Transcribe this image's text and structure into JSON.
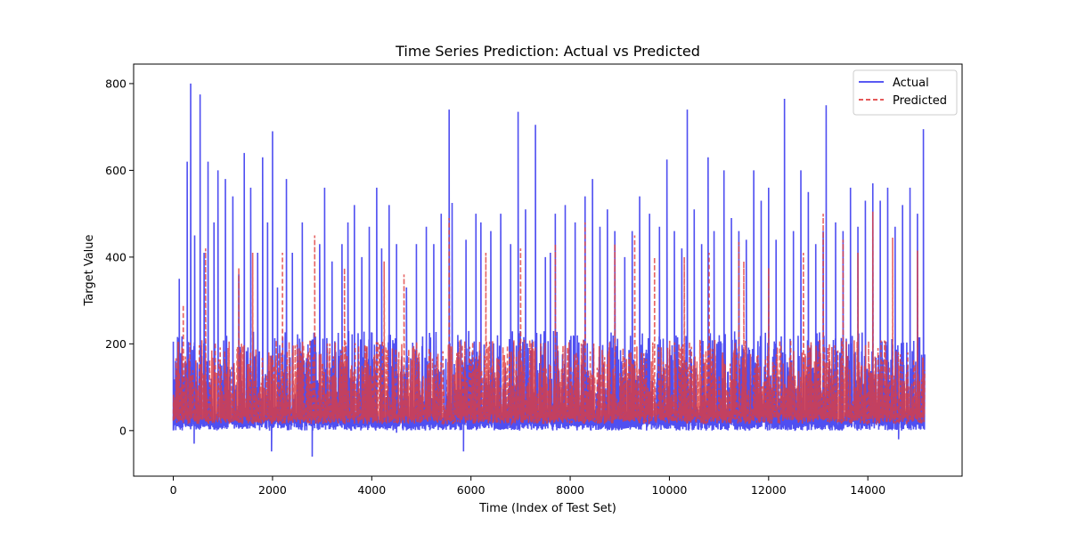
{
  "chart_data": {
    "type": "line",
    "title": "Time Series Prediction: Actual vs Predicted",
    "xlabel": "Time (Index of Test Set)",
    "ylabel": "Target Value",
    "xlim": [
      -800,
      15900
    ],
    "ylim": [
      -105,
      845
    ],
    "x_ticks": [
      0,
      2000,
      4000,
      6000,
      8000,
      10000,
      12000,
      14000
    ],
    "y_ticks": [
      0,
      200,
      400,
      600,
      800
    ],
    "x_tick_labels": [
      "0",
      "2000",
      "4000",
      "6000",
      "8000",
      "10000",
      "12000",
      "14000"
    ],
    "y_tick_labels": [
      "0",
      "200",
      "400",
      "600",
      "800"
    ],
    "grid": false,
    "legend_position": "top-right",
    "n_points": 15150,
    "series": [
      {
        "name": "Actual",
        "color": "#3c3cf0",
        "style": "solid",
        "baseline_range": [
          0,
          230
        ],
        "spikes": [
          [
            0,
            205
          ],
          [
            120,
            350
          ],
          [
            280,
            620
          ],
          [
            350,
            800
          ],
          [
            430,
            450
          ],
          [
            540,
            775
          ],
          [
            620,
            410
          ],
          [
            700,
            620
          ],
          [
            820,
            480
          ],
          [
            900,
            600
          ],
          [
            1050,
            580
          ],
          [
            1200,
            540
          ],
          [
            1320,
            360
          ],
          [
            1430,
            640
          ],
          [
            1560,
            560
          ],
          [
            1700,
            410
          ],
          [
            1800,
            630
          ],
          [
            1900,
            480
          ],
          [
            2000,
            690
          ],
          [
            2100,
            330
          ],
          [
            2280,
            580
          ],
          [
            2400,
            410
          ],
          [
            2600,
            480
          ],
          [
            2800,
            210
          ],
          [
            2950,
            430
          ],
          [
            3050,
            560
          ],
          [
            3200,
            390
          ],
          [
            3400,
            430
          ],
          [
            3520,
            480
          ],
          [
            3650,
            520
          ],
          [
            3800,
            400
          ],
          [
            3950,
            470
          ],
          [
            4100,
            560
          ],
          [
            4200,
            420
          ],
          [
            4350,
            520
          ],
          [
            4500,
            430
          ],
          [
            4700,
            330
          ],
          [
            4900,
            430
          ],
          [
            5100,
            470
          ],
          [
            5250,
            430
          ],
          [
            5400,
            500
          ],
          [
            5560,
            740
          ],
          [
            5620,
            525
          ],
          [
            5800,
            210
          ],
          [
            5900,
            440
          ],
          [
            6100,
            500
          ],
          [
            6200,
            480
          ],
          [
            6400,
            460
          ],
          [
            6600,
            500
          ],
          [
            6800,
            430
          ],
          [
            6950,
            735
          ],
          [
            7100,
            510
          ],
          [
            7300,
            705
          ],
          [
            7500,
            400
          ],
          [
            7600,
            410
          ],
          [
            7700,
            500
          ],
          [
            7900,
            520
          ],
          [
            8100,
            480
          ],
          [
            8300,
            540
          ],
          [
            8450,
            580
          ],
          [
            8600,
            470
          ],
          [
            8750,
            510
          ],
          [
            8900,
            460
          ],
          [
            9100,
            400
          ],
          [
            9250,
            460
          ],
          [
            9400,
            540
          ],
          [
            9600,
            500
          ],
          [
            9800,
            470
          ],
          [
            9950,
            625
          ],
          [
            10100,
            460
          ],
          [
            10250,
            420
          ],
          [
            10360,
            740
          ],
          [
            10500,
            510
          ],
          [
            10650,
            430
          ],
          [
            10780,
            630
          ],
          [
            10900,
            460
          ],
          [
            11100,
            600
          ],
          [
            11250,
            490
          ],
          [
            11400,
            460
          ],
          [
            11550,
            440
          ],
          [
            11700,
            600
          ],
          [
            11850,
            530
          ],
          [
            12000,
            560
          ],
          [
            12150,
            440
          ],
          [
            12320,
            765
          ],
          [
            12500,
            460
          ],
          [
            12650,
            600
          ],
          [
            12800,
            550
          ],
          [
            12950,
            430
          ],
          [
            13100,
            460
          ],
          [
            13160,
            750
          ],
          [
            13350,
            480
          ],
          [
            13500,
            460
          ],
          [
            13650,
            560
          ],
          [
            13800,
            470
          ],
          [
            13950,
            530
          ],
          [
            14100,
            570
          ],
          [
            14250,
            530
          ],
          [
            14400,
            560
          ],
          [
            14550,
            470
          ],
          [
            14700,
            520
          ],
          [
            14850,
            560
          ],
          [
            15000,
            500
          ],
          [
            15120,
            695
          ]
        ],
        "dips": [
          [
            420,
            -30
          ],
          [
            1980,
            -48
          ],
          [
            2800,
            -60
          ],
          [
            5850,
            -48
          ],
          [
            14620,
            -20
          ],
          [
            4500,
            -5
          ]
        ]
      },
      {
        "name": "Predicted",
        "color": "#e03c3c",
        "style": "dashed",
        "baseline_range": [
          15,
          210
        ],
        "spikes": [
          [
            200,
            290
          ],
          [
            650,
            420
          ],
          [
            1320,
            375
          ],
          [
            1600,
            410
          ],
          [
            2200,
            410
          ],
          [
            2850,
            450
          ],
          [
            3450,
            375
          ],
          [
            4250,
            390
          ],
          [
            4650,
            360
          ],
          [
            5560,
            490
          ],
          [
            6300,
            410
          ],
          [
            7000,
            420
          ],
          [
            7700,
            430
          ],
          [
            8300,
            480
          ],
          [
            8900,
            430
          ],
          [
            9300,
            450
          ],
          [
            9700,
            400
          ],
          [
            10300,
            400
          ],
          [
            10800,
            410
          ],
          [
            11400,
            435
          ],
          [
            11500,
            390
          ],
          [
            12000,
            375
          ],
          [
            12700,
            410
          ],
          [
            13100,
            500
          ],
          [
            13500,
            440
          ],
          [
            13800,
            410
          ],
          [
            14100,
            505
          ],
          [
            14500,
            445
          ],
          [
            15000,
            415
          ]
        ]
      }
    ]
  }
}
